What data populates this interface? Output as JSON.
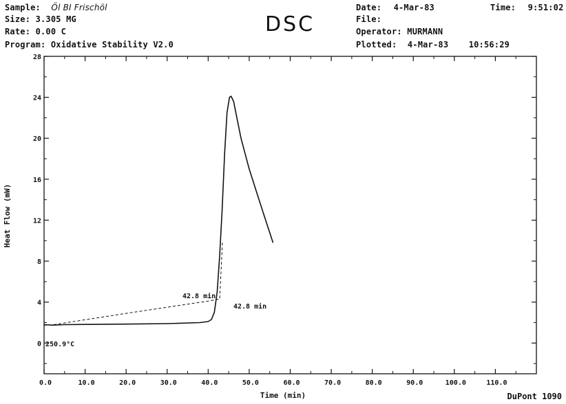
{
  "header": {
    "sample_label": "Sample:",
    "sample_value": "Öl BI Frischöl",
    "size_label": "Size:",
    "size_value": "3.305 MG",
    "rate_label": "Rate:",
    "rate_value": "0.00 C",
    "program_label": "Program:",
    "program_value": "Oxidative Stability V2.0",
    "date_label": "Date:",
    "date_value": "4-Mar-83",
    "time_label": "Time:",
    "time_value": "9:51:02",
    "file_label": "File:",
    "file_value": "",
    "operator_label": "Operator:",
    "operator_value": "MURMANN",
    "plotted_label": "Plotted:",
    "plotted_date": "4-Mar-83",
    "plotted_time": "10:56:29"
  },
  "title": "DSC",
  "footer": "DuPont 1090",
  "chart_data": {
    "type": "line",
    "xlabel": "Time (min)",
    "ylabel": "Heat Flow (mW)",
    "xlim": [
      0,
      120
    ],
    "ylim": [
      -3,
      28
    ],
    "x_ticks": [
      0,
      10,
      20,
      30,
      40,
      50,
      60,
      70,
      80,
      90,
      100,
      110
    ],
    "x_tick_labels": [
      "0.0",
      "10.0",
      "20.0",
      "30.0",
      "40.0",
      "50.0",
      "60.0",
      "70.0",
      "80.0",
      "90.0",
      "100.0",
      "110.0"
    ],
    "y_ticks": [
      0,
      4,
      8,
      12,
      16,
      20,
      24,
      28
    ],
    "y_tick_labels": [
      "0",
      "4",
      "8",
      "12",
      "16",
      "20",
      "24",
      "28"
    ],
    "grid": false,
    "series": [
      {
        "style": "solid",
        "x": [
          0,
          2,
          5,
          10,
          20,
          30,
          38,
          40,
          40.8,
          41.5,
          42.2,
          42.8,
          43.4,
          44.0,
          44.6,
          45.2,
          45.6,
          46.2,
          47.0,
          48.0,
          50.0,
          52.0,
          54.0,
          55.8
        ],
        "y": [
          1.8,
          1.75,
          1.8,
          1.82,
          1.85,
          1.9,
          2.0,
          2.1,
          2.3,
          3.0,
          5.0,
          8.5,
          13.0,
          18.5,
          22.5,
          24.0,
          24.1,
          23.6,
          22.0,
          20.0,
          17.0,
          14.5,
          12.0,
          9.8
        ]
      },
      {
        "style": "dashed",
        "x": [
          0,
          2,
          20,
          40,
          42.8,
          43.5
        ],
        "y": [
          1.75,
          1.78,
          2.9,
          4.1,
          4.3,
          10.0
        ]
      }
    ],
    "annotations": [
      "42.8 min",
      "42.8 min",
      "250.9°C"
    ]
  }
}
